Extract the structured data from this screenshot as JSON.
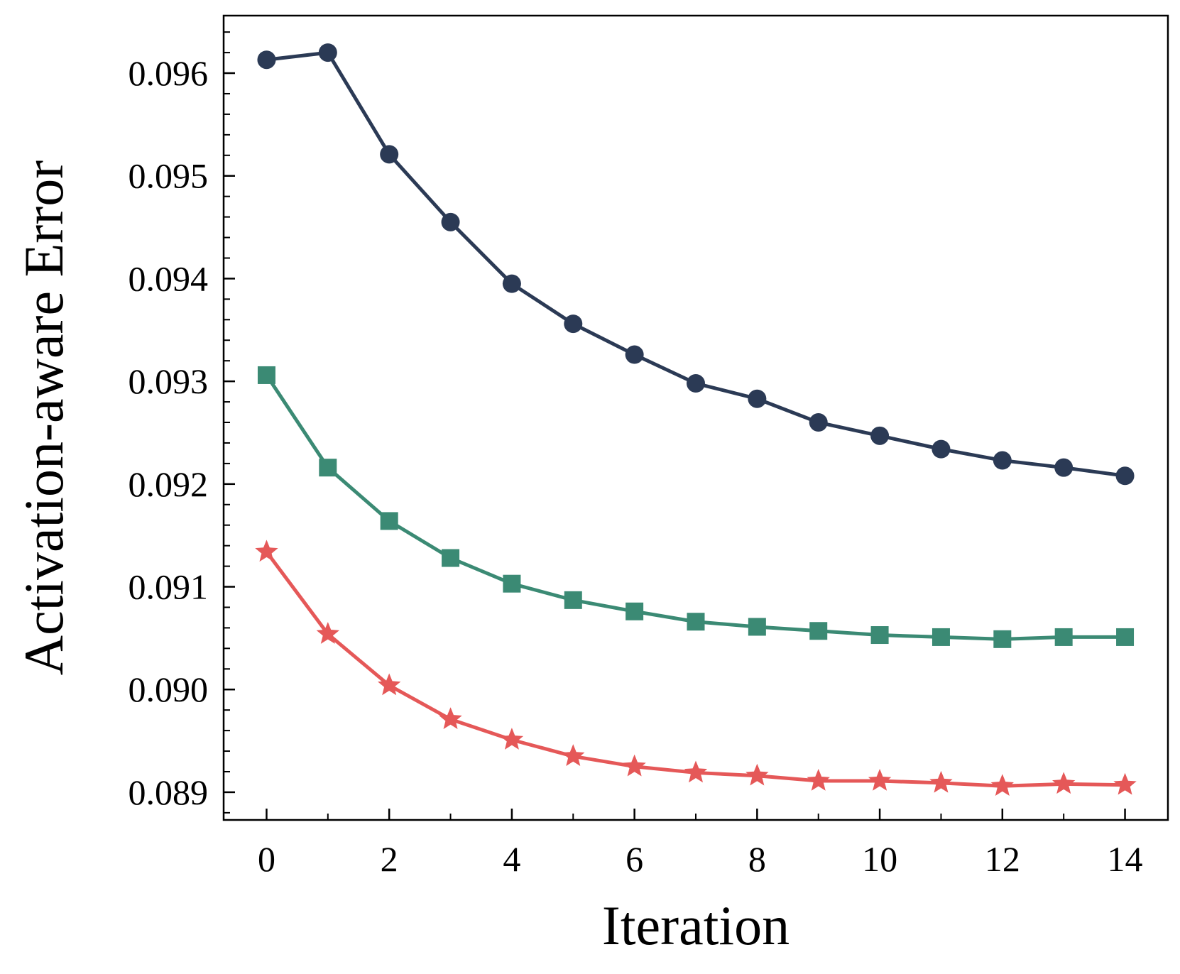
{
  "chart_data": {
    "type": "line",
    "title": "",
    "xlabel": "Iteration",
    "ylabel": "Activation-aware Error",
    "xlim": [
      -0.7,
      14.7
    ],
    "ylim": [
      0.08873,
      0.09656
    ],
    "xticks": [
      0,
      2,
      4,
      6,
      8,
      10,
      12,
      14
    ],
    "xtick_labels": [
      "0",
      "2",
      "4",
      "6",
      "8",
      "10",
      "12",
      "14"
    ],
    "yticks": [
      0.089,
      0.09,
      0.091,
      0.092,
      0.093,
      0.094,
      0.095,
      0.096
    ],
    "ytick_labels": [
      "0.089",
      "0.090",
      "0.091",
      "0.092",
      "0.093",
      "0.094",
      "0.095",
      "0.096"
    ],
    "grid": false,
    "x": [
      0,
      1,
      2,
      3,
      4,
      5,
      6,
      7,
      8,
      9,
      10,
      11,
      12,
      13,
      14
    ],
    "series": [
      {
        "name": "series-circle",
        "marker": "circle",
        "color": "#2b3a55",
        "values": [
          0.09613,
          0.0962,
          0.09521,
          0.09455,
          0.09395,
          0.09356,
          0.09326,
          0.09298,
          0.09283,
          0.0926,
          0.09247,
          0.09234,
          0.09223,
          0.09216,
          0.09208
        ]
      },
      {
        "name": "series-square",
        "marker": "square",
        "color": "#3b8a74",
        "values": [
          0.09306,
          0.09216,
          0.09164,
          0.09128,
          0.09103,
          0.09087,
          0.09076,
          0.09066,
          0.09061,
          0.09057,
          0.09053,
          0.09051,
          0.09049,
          0.09051,
          0.09051
        ]
      },
      {
        "name": "series-star",
        "marker": "star",
        "color": "#e55858",
        "values": [
          0.09134,
          0.09054,
          0.09004,
          0.08971,
          0.08951,
          0.08935,
          0.08925,
          0.08919,
          0.08916,
          0.08911,
          0.08911,
          0.08909,
          0.08906,
          0.08908,
          0.08907
        ]
      }
    ]
  }
}
